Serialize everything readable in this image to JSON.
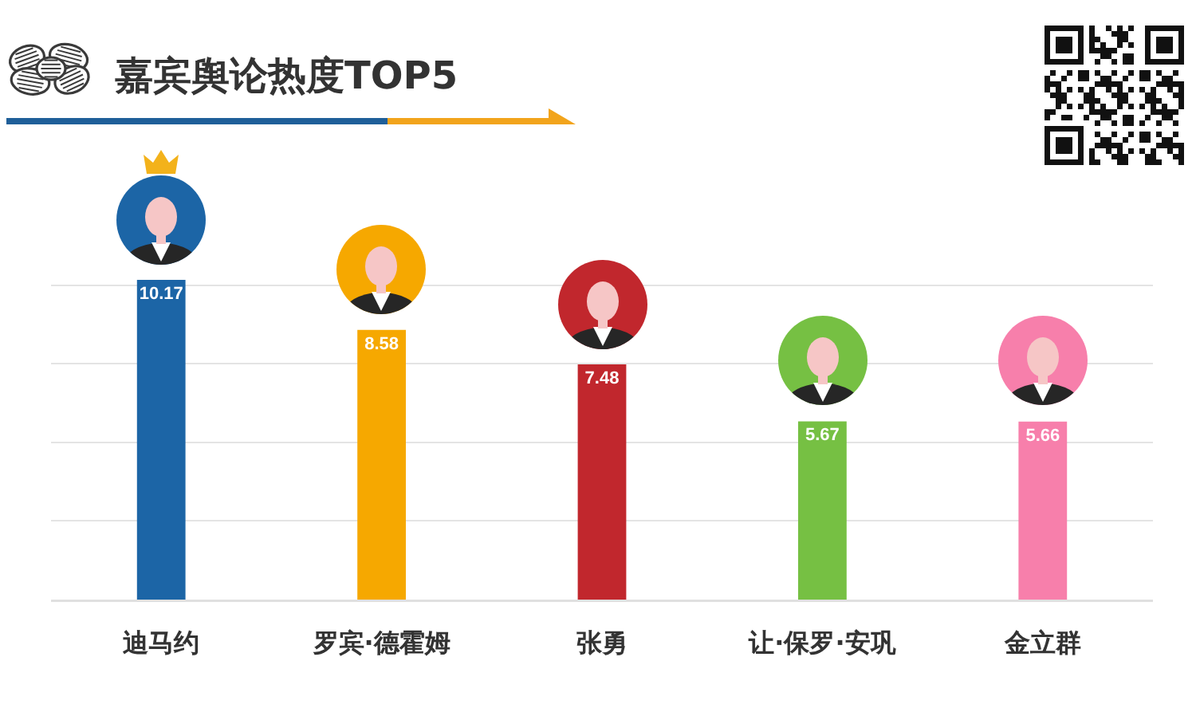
{
  "chart_data": {
    "type": "bar",
    "title": "嘉宾舆论热度TOP5",
    "categories": [
      "迪马约",
      "罗宾·德霍姆",
      "张勇",
      "让·保罗·安巩",
      "金立群"
    ],
    "values": [
      10.17,
      8.58,
      7.48,
      5.67,
      5.66
    ],
    "colors": [
      "#1c65a6",
      "#f6a800",
      "#c1272d",
      "#76c043",
      "#f77fab"
    ],
    "ylim": [
      0,
      14
    ],
    "yticks": [
      {
        "value": 2.5,
        "label": null
      },
      {
        "value": 5,
        "label": null
      },
      {
        "value": 7.5,
        "label": null
      },
      {
        "value": 10,
        "label": null
      }
    ],
    "grid": "y",
    "tick_labels": "x",
    "data_labels": true
  }
}
